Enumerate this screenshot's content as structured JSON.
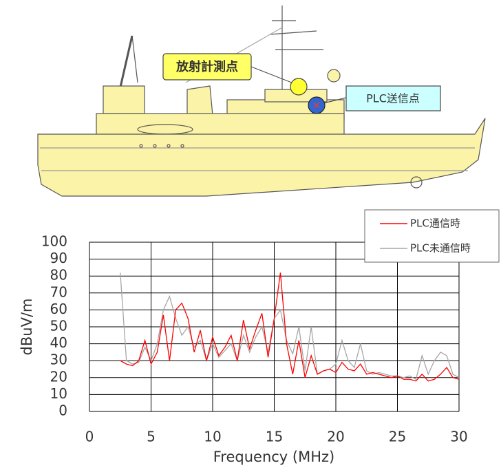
{
  "diagram": {
    "labels": [
      "放射計測点",
      "PLC送信点"
    ]
  },
  "chart_data": {
    "type": "line",
    "x_label": "Frequency (MHz)",
    "y_label": "dBuV/m",
    "x": [
      2.5,
      3,
      3.5,
      4,
      4.5,
      5,
      5.5,
      6,
      6.5,
      7,
      7.5,
      8,
      8.5,
      9,
      9.5,
      10,
      10.5,
      11,
      11.5,
      12,
      12.5,
      13,
      13.5,
      14,
      14.5,
      15,
      15.5,
      16,
      16.5,
      17,
      17.5,
      18,
      18.5,
      19,
      19.5,
      20,
      20.5,
      21,
      21.5,
      22,
      22.5,
      23,
      23.5,
      24,
      24.5,
      25,
      25.5,
      26,
      26.5,
      27,
      27.5,
      28,
      28.5,
      29,
      29.5,
      30
    ],
    "series": [
      {
        "name": "PLC通信時",
        "color": "#ff0000",
        "values": [
          30,
          28,
          27,
          30,
          42,
          28,
          35,
          57,
          30,
          60,
          64,
          55,
          35,
          48,
          30,
          44,
          33,
          38,
          45,
          30,
          54,
          37,
          48,
          58,
          32,
          55,
          82,
          40,
          22,
          42,
          20,
          33,
          22,
          24,
          25,
          23,
          29,
          25,
          24,
          28,
          22,
          23,
          22,
          21,
          20,
          21,
          19,
          19,
          18,
          22,
          18,
          19,
          22,
          26,
          20,
          19
        ]
      },
      {
        "name": "PLC未通信時",
        "color": "#a6a6a6",
        "values": [
          82,
          30,
          28,
          29,
          38,
          30,
          40,
          60,
          68,
          55,
          45,
          50,
          38,
          42,
          30,
          40,
          32,
          36,
          40,
          30,
          45,
          35,
          44,
          50,
          35,
          55,
          60,
          42,
          34,
          50,
          24,
          50,
          22,
          24,
          25,
          28,
          42,
          30,
          26,
          40,
          24,
          22,
          23,
          22,
          21,
          21,
          20,
          21,
          19,
          33,
          22,
          30,
          35,
          33,
          22,
          20
        ]
      }
    ],
    "xlim": [
      0,
      30
    ],
    "xticks": [
      0,
      5,
      10,
      15,
      20,
      25,
      30
    ],
    "ylim": [
      0,
      100
    ],
    "yticks": [
      0,
      10,
      20,
      30,
      40,
      50,
      60,
      70,
      80,
      90,
      100
    ],
    "grid": true,
    "legend": "upper-right"
  }
}
